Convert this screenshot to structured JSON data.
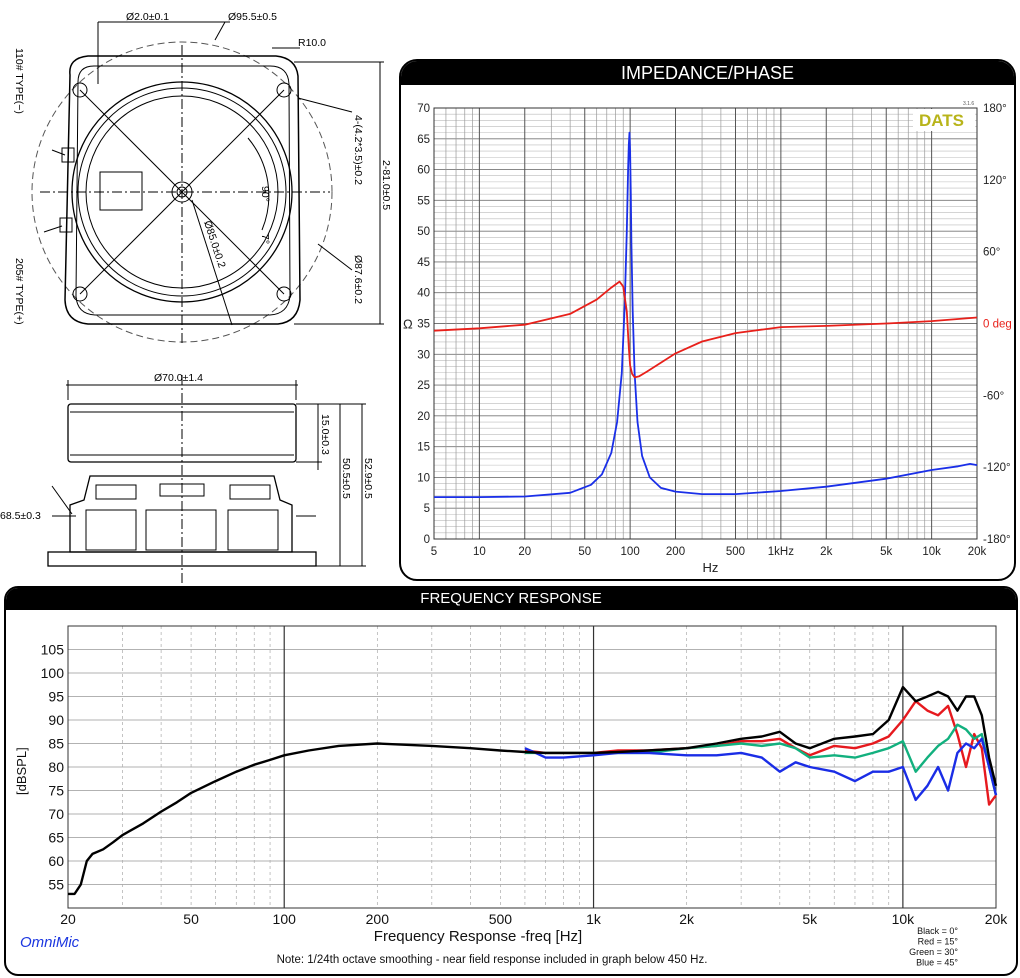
{
  "drawing": {
    "dims": {
      "hole": "Ø2.0±0.1",
      "outer_circle": "Ø95.5±0.5",
      "corner_radius": "R10.0",
      "mount_holes": "4-(4.2*3.5)±0.2",
      "width_square": "2-81.0±0.5",
      "bolt_circle": "Ø85.0±0.2",
      "cone": "Ø87.6±0.2",
      "angle_90": "90°",
      "angle_7": "7°",
      "type_neg": "110# TYPE(−)",
      "type_pos": "205# TYPE(+)",
      "magnet": "Ø70.0±1.4",
      "h15": "15.0±0.3",
      "h50": "50.5±0.5",
      "h52": "52.9±0.5",
      "h68": "68.5±0.3"
    }
  },
  "impedance": {
    "title": "IMPEDANCE/PHASE",
    "logo": "DATS",
    "version": "3.1.6",
    "ylabel": "Ω",
    "xlabel": "Hz",
    "phase_unit": "deg"
  },
  "frequency": {
    "title": "FREQUENCY RESPONSE",
    "brand": "OmniMic",
    "note": "Note: 1/24th octave smoothing - near field response included in graph below 450 Hz.",
    "xlabel": "Frequency Response -freq [Hz]",
    "ylabel": "[dBSPL]",
    "legend": [
      "Black = 0°",
      "Red = 15°",
      "Green = 30°",
      "Blue = 45°"
    ]
  },
  "chart_data": [
    {
      "type": "line",
      "title": "IMPEDANCE/PHASE",
      "xscale": "log",
      "xlim": [
        5,
        20000
      ],
      "ylim": [
        0,
        70
      ],
      "y2lim": [
        -180,
        180
      ],
      "xlabel": "Hz",
      "ylabel": "Ω",
      "xticks": [
        5,
        10,
        20,
        50,
        100,
        200,
        500,
        1000,
        2000,
        5000,
        10000,
        20000
      ],
      "xtick_labels": [
        "5",
        "10",
        "20",
        "50",
        "100",
        "200",
        "500",
        "1kHz",
        "2k",
        "5k",
        "10k",
        "20k"
      ],
      "yticks": [
        0,
        5,
        10,
        15,
        20,
        25,
        30,
        35,
        40,
        45,
        50,
        55,
        60,
        65,
        70
      ],
      "y2tick_labels": [
        "180°",
        "120°",
        "60°",
        "0 deg",
        "-60°",
        "-120°",
        "-180°"
      ],
      "grid": true,
      "series": [
        {
          "axis": "impedance",
          "color": "#1a2fe8",
          "x": [
            5,
            10,
            20,
            40,
            55,
            65,
            75,
            82,
            88,
            92,
            95,
            97,
            98,
            99,
            100,
            101,
            102,
            104,
            107,
            112,
            120,
            135,
            160,
            200,
            300,
            500,
            1000,
            2000,
            5000,
            10000,
            15000,
            18000,
            20000
          ],
          "y": [
            6.8,
            6.8,
            6.9,
            7.5,
            8.8,
            10.5,
            14,
            19,
            27,
            38,
            50,
            60,
            64,
            66,
            63,
            56,
            48,
            37,
            27,
            19,
            13.5,
            10,
            8.3,
            7.7,
            7.3,
            7.3,
            7.8,
            8.5,
            9.8,
            11.2,
            11.8,
            12.2,
            12
          ]
        },
        {
          "axis": "phase",
          "color": "#e8201a",
          "x": [
            5,
            10,
            20,
            40,
            60,
            75,
            85,
            90,
            95,
            98,
            100,
            103,
            107,
            115,
            130,
            200,
            300,
            500,
            1000,
            2000,
            5000,
            10000,
            20000
          ],
          "y": [
            -6,
            -4,
            -1,
            8,
            20,
            30,
            35,
            31,
            10,
            -20,
            -35,
            -42,
            -45,
            -44,
            -40,
            -25,
            -15,
            -8,
            -3,
            -2,
            0,
            2,
            5
          ]
        }
      ]
    },
    {
      "type": "line",
      "title": "FREQUENCY RESPONSE",
      "xscale": "log",
      "xlim": [
        20,
        20000
      ],
      "ylim": [
        50,
        110
      ],
      "xlabel": "Frequency Response -freq [Hz]",
      "ylabel": "[dBSPL]",
      "xticks": [
        20,
        50,
        100,
        200,
        500,
        1000,
        2000,
        5000,
        10000,
        20000
      ],
      "xtick_labels": [
        "20",
        "50",
        "100",
        "200",
        "500",
        "1k",
        "2k",
        "5k",
        "10k",
        "20k"
      ],
      "yticks": [
        55,
        60,
        65,
        70,
        75,
        80,
        85,
        90,
        95,
        100,
        105
      ],
      "grid": true,
      "series": [
        {
          "name": "Black = 0°",
          "color": "#000000",
          "x": [
            20,
            21,
            22,
            23,
            24,
            26,
            28,
            30,
            35,
            40,
            45,
            50,
            60,
            70,
            80,
            90,
            100,
            120,
            150,
            200,
            300,
            400,
            500,
            600,
            700,
            800,
            1000,
            1200,
            1500,
            2000,
            2500,
            3000,
            3500,
            4000,
            4500,
            5000,
            6000,
            7000,
            8000,
            9000,
            10000,
            11000,
            12000,
            13000,
            14000,
            15000,
            16000,
            17000,
            18000,
            19000,
            20000
          ],
          "y": [
            53,
            53,
            55,
            60,
            61.5,
            62.5,
            64,
            65.5,
            68,
            70.5,
            72.5,
            74.5,
            77,
            79,
            80.5,
            81.5,
            82.5,
            83.5,
            84.5,
            85,
            84.5,
            84,
            83.5,
            83.2,
            83,
            83,
            83,
            83.2,
            83.5,
            84,
            85,
            86,
            86.5,
            87.5,
            85,
            84,
            86,
            86.5,
            87,
            90,
            97,
            94,
            95,
            96,
            95,
            92,
            95,
            95,
            91,
            82,
            76
          ]
        },
        {
          "name": "Red = 15°",
          "color": "#e6191e",
          "x": [
            600,
            700,
            800,
            1000,
            1200,
            1500,
            2000,
            2500,
            3000,
            3500,
            4000,
            4500,
            5000,
            6000,
            7000,
            8000,
            9000,
            10000,
            11000,
            12000,
            13000,
            14000,
            15000,
            16000,
            17000,
            18000,
            19000,
            20000
          ],
          "y": [
            83.5,
            83,
            83,
            83,
            83.5,
            83.5,
            84,
            84.5,
            85.5,
            85.5,
            86,
            84,
            82.5,
            84.5,
            84,
            85,
            86.5,
            90,
            94,
            92,
            91,
            93,
            87,
            80,
            87,
            84,
            72,
            74
          ]
        },
        {
          "name": "Green = 30°",
          "color": "#12b07e",
          "x": [
            600,
            700,
            800,
            1000,
            1200,
            1500,
            2000,
            2500,
            3000,
            3500,
            4000,
            4500,
            5000,
            6000,
            7000,
            8000,
            9000,
            10000,
            11000,
            12000,
            13000,
            14000,
            15000,
            16000,
            17000,
            18000,
            19000,
            20000
          ],
          "y": [
            83,
            83,
            83,
            83,
            83,
            83,
            84,
            84.5,
            85,
            84.5,
            85,
            84,
            82,
            82.5,
            82,
            83,
            84,
            85.5,
            79,
            82,
            84.5,
            86,
            89,
            88,
            86,
            87,
            80,
            74
          ]
        },
        {
          "name": "Blue = 45°",
          "color": "#1a2de6",
          "x": [
            600,
            650,
            700,
            800,
            1000,
            1200,
            1500,
            2000,
            2500,
            3000,
            3500,
            4000,
            4500,
            5000,
            6000,
            7000,
            8000,
            9000,
            10000,
            11000,
            12000,
            13000,
            14000,
            15000,
            16000,
            17000,
            18000,
            19000,
            20000
          ],
          "y": [
            84,
            83,
            82,
            82,
            82.5,
            83,
            83,
            82.5,
            82.5,
            83,
            82,
            79,
            81,
            80,
            79,
            77,
            79,
            79,
            80,
            73,
            76,
            80,
            75,
            83,
            85,
            84,
            86,
            80,
            74
          ]
        }
      ]
    }
  ]
}
